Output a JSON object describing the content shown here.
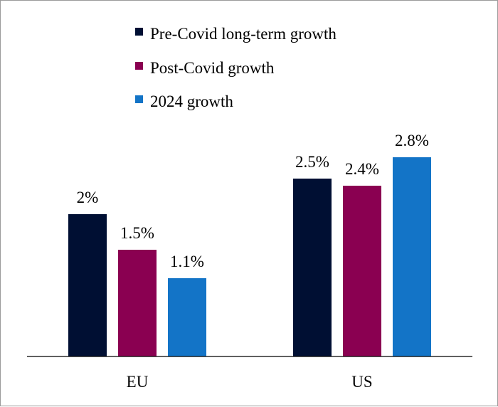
{
  "chart_data": {
    "type": "bar",
    "categories": [
      "EU",
      "US"
    ],
    "series": [
      {
        "name": "Pre-Covid long-term growth",
        "color": "#000f33",
        "values": [
          2.0,
          2.5
        ],
        "labels": [
          "2%",
          "2.5%"
        ]
      },
      {
        "name": "Post-Covid growth",
        "color": "#8a0051",
        "values": [
          1.5,
          2.4
        ],
        "labels": [
          "1.5%",
          "2.4%"
        ]
      },
      {
        "name": "2024 growth",
        "color": "#1374c7",
        "values": [
          1.1,
          2.8
        ],
        "labels": [
          "1.1%",
          "2.8%"
        ]
      }
    ],
    "ylim": [
      0,
      3.3
    ],
    "legend_position": "top-center",
    "grid": false,
    "y_axis_visible": false
  }
}
